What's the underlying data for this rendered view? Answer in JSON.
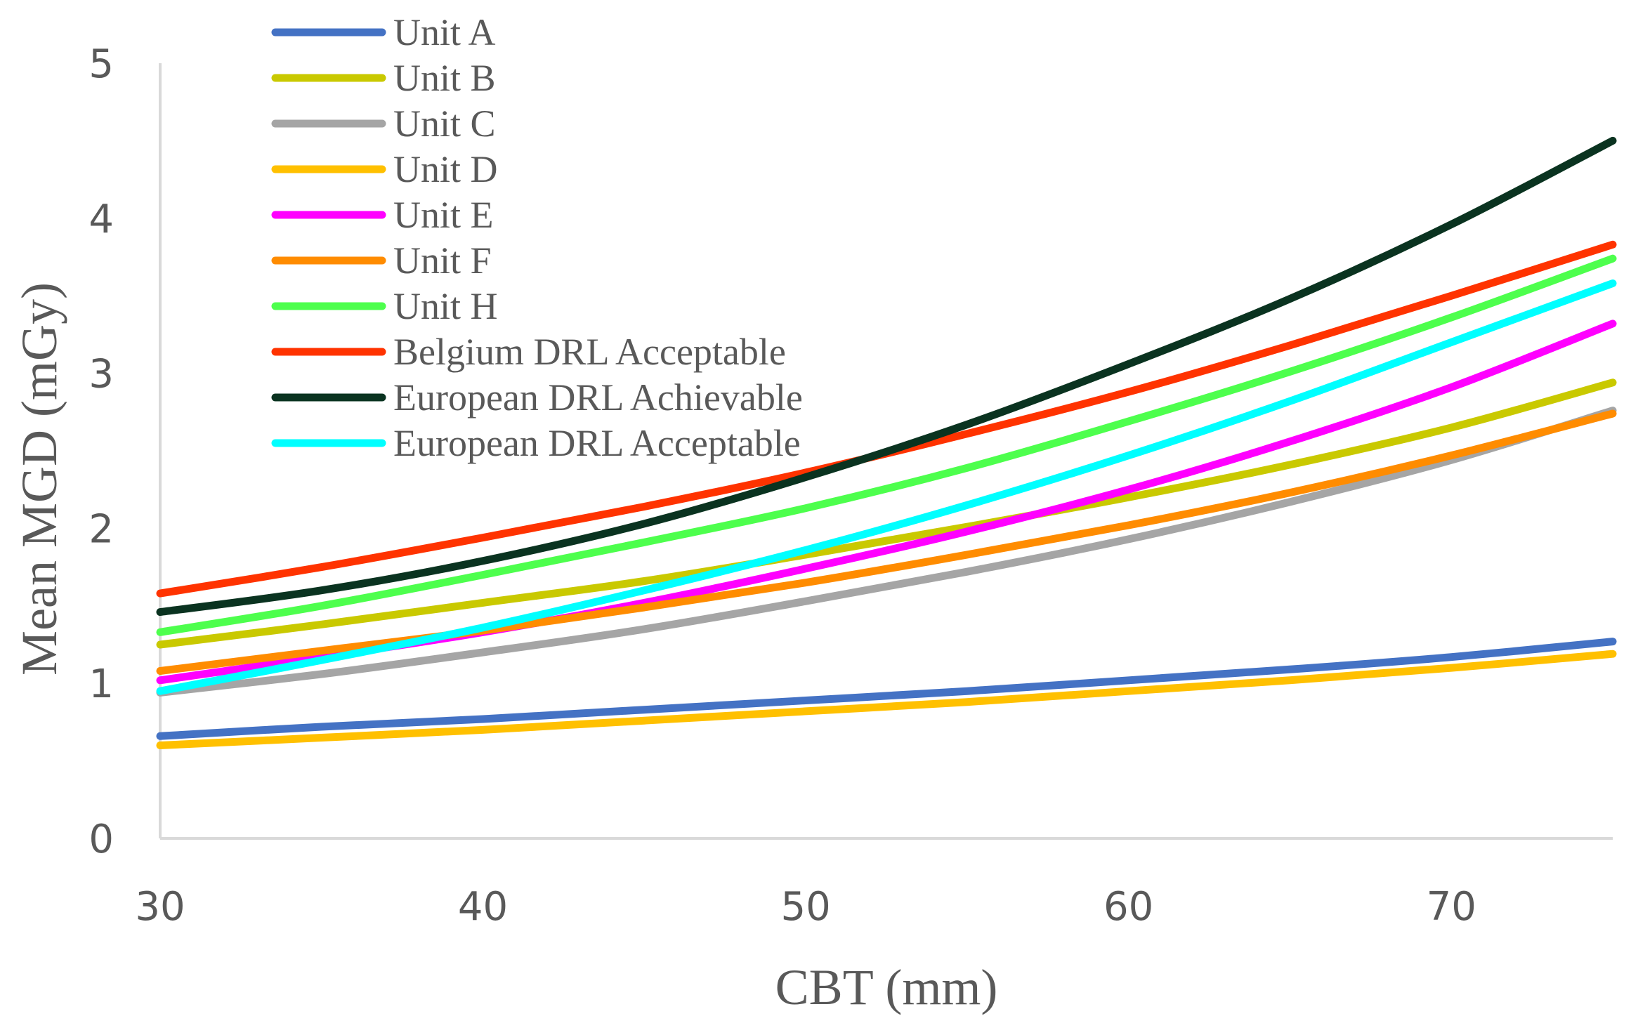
{
  "chart_data": {
    "type": "line",
    "title": "",
    "xlabel": "CBT (mm)",
    "ylabel": "Mean MGD  (mGy)",
    "xlim": [
      30,
      75
    ],
    "ylim": [
      0,
      5
    ],
    "xticks": [
      30,
      40,
      50,
      60,
      70
    ],
    "yticks": [
      0,
      1,
      2,
      3,
      4,
      5
    ],
    "grid": false,
    "legend_position": "top-left",
    "x": [
      30,
      35,
      40,
      45,
      50,
      55,
      60,
      65,
      70,
      75
    ],
    "series": [
      {
        "name": "Unit A",
        "color": "#4472C4",
        "values": [
          0.66,
          0.72,
          0.77,
          0.83,
          0.89,
          0.95,
          1.02,
          1.09,
          1.17,
          1.27
        ]
      },
      {
        "name": "Unit B",
        "color": "#C9C900",
        "values": [
          1.25,
          1.38,
          1.52,
          1.66,
          1.83,
          2.01,
          2.2,
          2.41,
          2.65,
          2.94
        ]
      },
      {
        "name": "Unit C",
        "color": "#A5A5A5",
        "values": [
          0.94,
          1.06,
          1.2,
          1.35,
          1.53,
          1.72,
          1.93,
          2.17,
          2.44,
          2.76
        ]
      },
      {
        "name": "Unit D",
        "color": "#FFC000",
        "values": [
          0.6,
          0.65,
          0.7,
          0.76,
          0.82,
          0.88,
          0.95,
          1.02,
          1.1,
          1.19
        ]
      },
      {
        "name": "Unit E",
        "color": "#FF00FF",
        "values": [
          1.02,
          1.17,
          1.33,
          1.52,
          1.74,
          1.98,
          2.25,
          2.56,
          2.91,
          3.32
        ]
      },
      {
        "name": "Unit F",
        "color": "#FF8C00",
        "values": [
          1.08,
          1.21,
          1.34,
          1.49,
          1.65,
          1.83,
          2.02,
          2.23,
          2.47,
          2.74
        ]
      },
      {
        "name": "Unit H",
        "color": "#4DFF4D",
        "values": [
          1.33,
          1.5,
          1.7,
          1.91,
          2.13,
          2.39,
          2.69,
          3.01,
          3.36,
          3.74
        ]
      },
      {
        "name": "Belgium DRL Acceptable",
        "color": "#FF3300",
        "values": [
          1.58,
          1.75,
          1.94,
          2.14,
          2.36,
          2.61,
          2.88,
          3.18,
          3.5,
          3.83
        ]
      },
      {
        "name": "European DRL Achievable",
        "color": "#0A3320",
        "values": [
          1.46,
          1.6,
          1.79,
          2.03,
          2.33,
          2.67,
          3.06,
          3.48,
          3.96,
          4.5
        ]
      },
      {
        "name": "European DRL Acceptable",
        "color": "#00FFFF",
        "values": [
          0.95,
          1.15,
          1.36,
          1.6,
          1.86,
          2.15,
          2.47,
          2.82,
          3.2,
          3.58
        ]
      }
    ]
  }
}
